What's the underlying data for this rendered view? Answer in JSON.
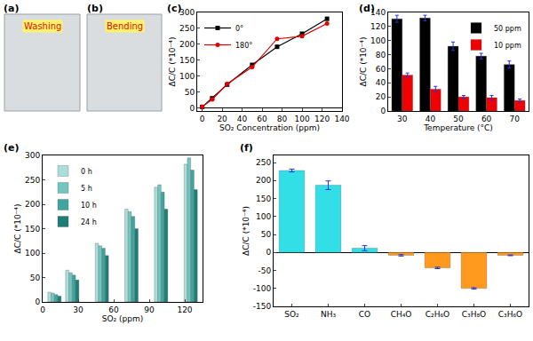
{
  "chart_data": [
    {
      "type": "image",
      "title": "(a)",
      "annotations": [
        "Washing"
      ]
    },
    {
      "type": "image",
      "title": "(b)",
      "annotations": [
        "Bending"
      ]
    },
    {
      "type": "line",
      "title": "(c)",
      "x_label": "SO₂ Concentration (ppm)",
      "y_label": "ΔC/C (*10⁻⁴)",
      "x": [
        0,
        10,
        25,
        50,
        75,
        100,
        125
      ],
      "series": [
        {
          "name": "0°",
          "color": "#000000",
          "marker": "square",
          "values": [
            3,
            30,
            73,
            135,
            192,
            233,
            280
          ]
        },
        {
          "name": "180°",
          "color": "#e00000",
          "marker": "circle",
          "values": [
            3,
            26,
            75,
            128,
            217,
            225,
            265
          ]
        }
      ],
      "xlim": [
        -5,
        140
      ],
      "xticks": [
        0,
        20,
        40,
        60,
        80,
        100,
        120,
        140
      ],
      "ylim": [
        -10,
        300
      ],
      "yticks": [
        0,
        50,
        100,
        150,
        200,
        250,
        300
      ],
      "legend": "upper left"
    },
    {
      "type": "bar",
      "title": "(d)",
      "x_label": "Temperature (°C)",
      "y_label": "ΔC/C (*10⁻⁴)",
      "categories": [
        "30",
        "40",
        "50",
        "60",
        "70"
      ],
      "series": [
        {
          "name": "50 ppm",
          "color": "#000000",
          "values": [
            131,
            132,
            92,
            78,
            66
          ],
          "errors": [
            5,
            4,
            6,
            4,
            5
          ]
        },
        {
          "name": "10 ppm",
          "color": "#f00000",
          "values": [
            51,
            31,
            20,
            19,
            15
          ],
          "errors": [
            3,
            4,
            2,
            3,
            2
          ]
        }
      ],
      "ylim": [
        0,
        140
      ],
      "yticks": [
        0,
        20,
        40,
        60,
        80,
        100,
        120,
        140
      ],
      "legend": "upper right"
    },
    {
      "type": "bar",
      "title": "(e)",
      "x_label": "SO₂ (ppm)",
      "y_label": "ΔC/C (*10⁻⁴)",
      "x": [
        10,
        25,
        50,
        75,
        100,
        125
      ],
      "series": [
        {
          "name": "0 h",
          "color": "#a9ded9",
          "values": [
            20,
            65,
            120,
            190,
            235,
            282
          ]
        },
        {
          "name": "5 h",
          "color": "#72c6bf",
          "values": [
            18,
            60,
            115,
            185,
            240,
            295
          ]
        },
        {
          "name": "10 h",
          "color": "#3fa59e",
          "values": [
            15,
            55,
            110,
            175,
            225,
            270
          ]
        },
        {
          "name": "24 h",
          "color": "#1d7d77",
          "values": [
            12,
            45,
            95,
            150,
            190,
            230
          ]
        }
      ],
      "xlim": [
        0,
        135
      ],
      "xticks": [
        0,
        30,
        60,
        90,
        120
      ],
      "ylim": [
        0,
        300
      ],
      "yticks": [
        0,
        50,
        100,
        150,
        200,
        250,
        300
      ],
      "legend": "upper left"
    },
    {
      "type": "bar",
      "title": "(f)",
      "y_label": "ΔC/C (*10⁻⁴)",
      "categories": [
        "SO₂",
        "NH₃",
        "CO",
        "CH₄O",
        "C₂H₆O",
        "C₃H₈O",
        "C₃H₆O"
      ],
      "values": [
        228,
        187,
        12,
        -8,
        -43,
        -100,
        -8
      ],
      "errors": [
        4,
        12,
        7,
        2,
        2,
        2,
        1
      ],
      "colors": [
        "#33dfe6",
        "#33dfe6",
        "#33dfe6",
        "#ff9a1f",
        "#ff9a1f",
        "#ff9a1f",
        "#ff9a1f"
      ],
      "ylim": [
        -150,
        270
      ],
      "yticks": [
        -150,
        -100,
        -50,
        0,
        50,
        100,
        150,
        200,
        250
      ]
    }
  ]
}
